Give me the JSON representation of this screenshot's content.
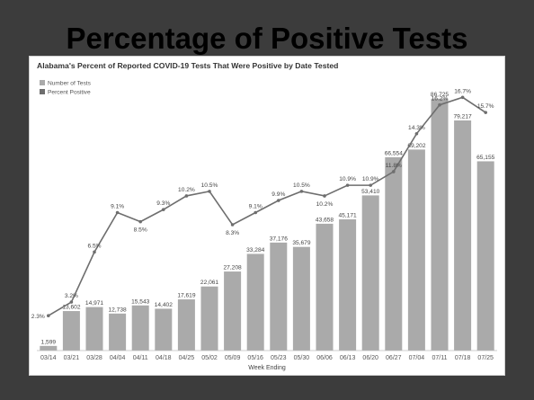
{
  "slide": {
    "title": "Percentage of Positive Tests"
  },
  "colors": {
    "background": "#3c3c3c",
    "panel": "#ffffff",
    "bars": "#aaaaaa",
    "line": "#6e6e6e"
  },
  "chart_data": {
    "type": "bar",
    "title": "Alabama's Percent of Reported COVID-19 Tests That Were Positive by Date Tested",
    "xlabel": "Week Ending",
    "ylabel": "",
    "categories": [
      "03/14",
      "03/21",
      "03/28",
      "04/04",
      "04/11",
      "04/18",
      "04/25",
      "05/02",
      "05/09",
      "05/16",
      "05/23",
      "05/30",
      "06/06",
      "06/13",
      "06/20",
      "06/27",
      "07/04",
      "07/11",
      "07/18",
      "07/25"
    ],
    "series": [
      {
        "name": "Number of Tests",
        "type": "bar",
        "values": [
          1599,
          13602,
          14971,
          12738,
          15543,
          14402,
          17619,
          22061,
          27208,
          33284,
          37176,
          35679,
          43658,
          45171,
          53410,
          66554,
          69202,
          86725,
          79217,
          65155
        ],
        "labels": [
          "1,599",
          "13,602",
          "14,971",
          "12,738",
          "15,543",
          "14,402",
          "17,619",
          "22,061",
          "27,208",
          "33,284",
          "37,176",
          "35,679",
          "43,658",
          "45,171",
          "53,410",
          "66,554",
          "69,202",
          "86,725",
          "79,217",
          "65,155"
        ]
      },
      {
        "name": "Percent Positive",
        "type": "line",
        "values": [
          2.3,
          3.2,
          6.5,
          9.1,
          8.5,
          9.3,
          10.2,
          10.5,
          8.3,
          9.1,
          9.9,
          10.5,
          10.2,
          10.9,
          10.9,
          11.8,
          14.3,
          16.2,
          16.7,
          15.7
        ],
        "labels": [
          "2.3%",
          "3.2%",
          "6.5%",
          "9.1%",
          "8.5%",
          "9.3%",
          "10.2%",
          "10.5%",
          "8.3%",
          "9.1%",
          "9.9%",
          "10.5%",
          "10.2%",
          "10.9%",
          "10.9%",
          "11.8%",
          "14.3%",
          "16.2%",
          "16.7%",
          "15.7%"
        ]
      }
    ],
    "bar_ylim": [
      0,
      95000
    ],
    "line_ylim": [
      0,
      18.2
    ],
    "grid": false,
    "legend": "top-left"
  }
}
